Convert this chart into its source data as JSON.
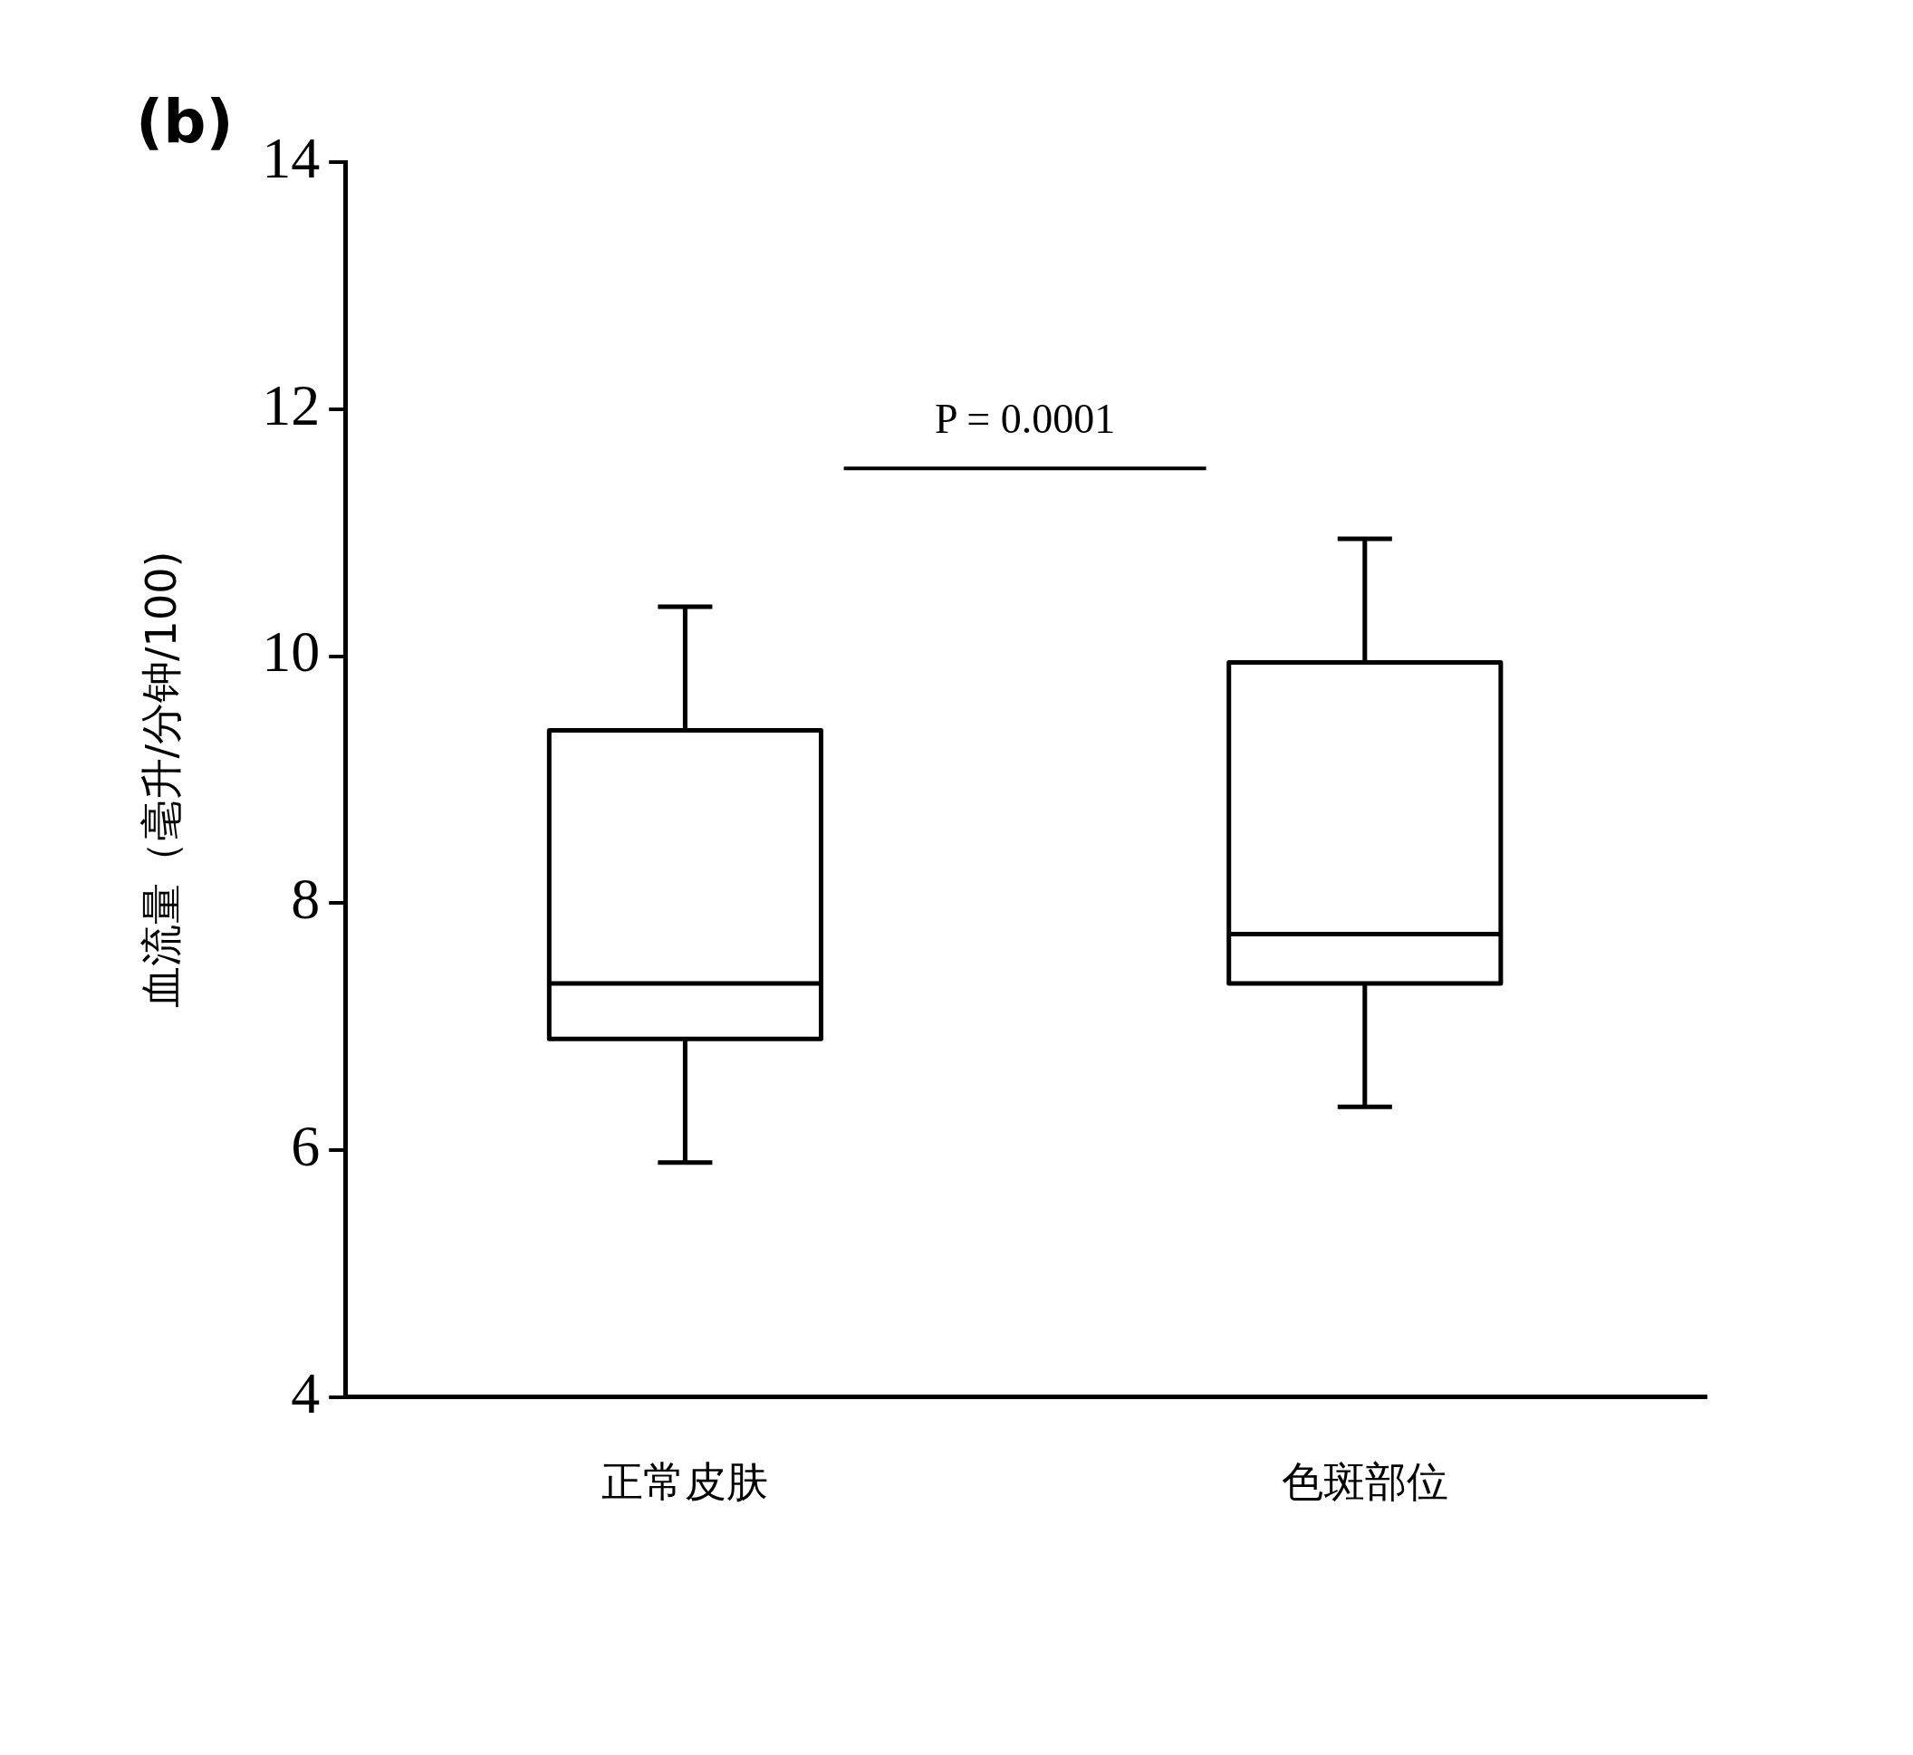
{
  "chart_data": {
    "type": "box",
    "title": "(b)",
    "ylabel": "血流量（毫升/分钟/100)",
    "categories": [
      "正常皮肤",
      "色斑部位"
    ],
    "boxes": [
      {
        "low": 5.9,
        "q1": 6.9,
        "median": 7.35,
        "q3": 9.4,
        "high": 10.4
      },
      {
        "low": 6.35,
        "q1": 7.35,
        "median": 7.75,
        "q3": 9.95,
        "high": 10.95
      }
    ],
    "ylim": [
      4,
      14
    ],
    "yticks": [
      4,
      6,
      8,
      10,
      12,
      14
    ],
    "grid": false,
    "legend": false,
    "annotations": [
      "P = 0.0001"
    ]
  }
}
